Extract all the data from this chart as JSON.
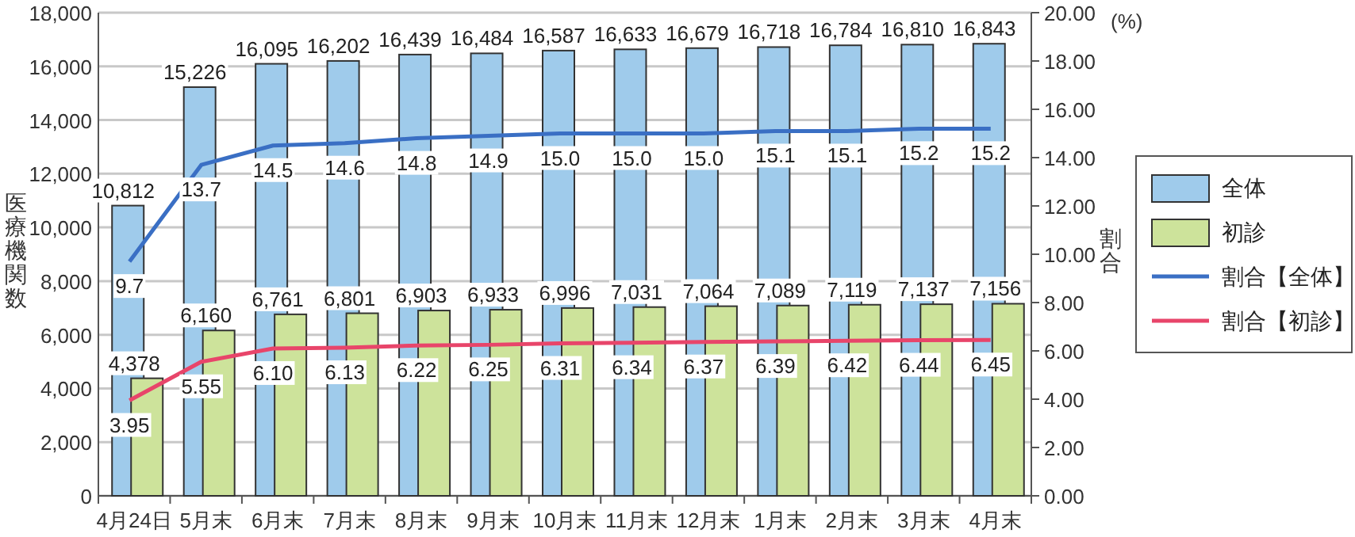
{
  "chart_data": {
    "type": "bar",
    "ylabel": "医療機関数",
    "y2label": "割合",
    "annotations": [
      "(%)"
    ],
    "categories": [
      "4月24日",
      "5月末",
      "6月末",
      "7月末",
      "8月末",
      "9月末",
      "10月末",
      "11月末",
      "12月末",
      "1月末",
      "2月末",
      "3月末",
      "4月末"
    ],
    "series": [
      {
        "name": "全体",
        "color": "#9fcbeb",
        "values": [
          10812,
          15226,
          16095,
          16202,
          16439,
          16484,
          16587,
          16633,
          16679,
          16718,
          16784,
          16810,
          16843
        ],
        "value_labels": [
          "10,812",
          "15,226",
          "16,095",
          "16,202",
          "16,439",
          "16,484",
          "16,587",
          "16,633",
          "16,679",
          "16,718",
          "16,784",
          "16,810",
          "16,843"
        ]
      },
      {
        "name": "初診",
        "color": "#cde39b",
        "values": [
          4378,
          6160,
          6761,
          6801,
          6903,
          6933,
          6996,
          7031,
          7064,
          7089,
          7119,
          7137,
          7156
        ],
        "value_labels": [
          "4,378",
          "6,160",
          "6,761",
          "6,801",
          "6,903",
          "6,933",
          "6,996",
          "7,031",
          "7,064",
          "7,089",
          "7,119",
          "7,137",
          "7,156"
        ]
      },
      {
        "name": "割合【全体】",
        "type": "line",
        "axis": "y2",
        "color": "#3a6fc4",
        "values": [
          9.7,
          13.7,
          14.5,
          14.6,
          14.8,
          14.9,
          15.0,
          15.0,
          15.0,
          15.1,
          15.1,
          15.2,
          15.2
        ],
        "value_labels": [
          "9.7",
          "13.7",
          "14.5",
          "14.6",
          "14.8",
          "14.9",
          "15.0",
          "15.0",
          "15.0",
          "15.1",
          "15.1",
          "15.2",
          "15.2"
        ]
      },
      {
        "name": "割合【初診】",
        "type": "line",
        "axis": "y2",
        "color": "#e8456a",
        "values": [
          3.95,
          5.55,
          6.1,
          6.13,
          6.22,
          6.25,
          6.31,
          6.34,
          6.37,
          6.39,
          6.42,
          6.44,
          6.45
        ],
        "value_labels": [
          "3.95",
          "5.55",
          "6.10",
          "6.13",
          "6.22",
          "6.25",
          "6.31",
          "6.34",
          "6.37",
          "6.39",
          "6.42",
          "6.44",
          "6.45"
        ]
      }
    ],
    "ylim": [
      0,
      18000
    ],
    "yticks": [
      0,
      {
        "value": 2000,
        "label": "2,000"
      },
      {
        "value": 4000,
        "label": "4,000"
      },
      {
        "value": 6000,
        "label": "6,000"
      },
      {
        "value": 8000,
        "label": "8,000"
      },
      {
        "value": 10000,
        "label": "10,000"
      },
      {
        "value": 12000,
        "label": "12,000"
      },
      {
        "value": 14000,
        "label": "14,000"
      },
      {
        "value": 16000,
        "label": "16,000"
      },
      {
        "value": 18000,
        "label": "18,000"
      }
    ],
    "y2lim": [
      0,
      20
    ],
    "y2ticks": [
      {
        "value": 0,
        "label": "0.00"
      },
      {
        "value": 2,
        "label": "2.00"
      },
      {
        "value": 4,
        "label": "4.00"
      },
      {
        "value": 6,
        "label": "6.00"
      },
      {
        "value": 8,
        "label": "8.00"
      },
      {
        "value": 10,
        "label": "10.00"
      },
      {
        "value": 12,
        "label": "12.00"
      },
      {
        "value": 14,
        "label": "14.00"
      },
      {
        "value": 16,
        "label": "16.00"
      },
      {
        "value": 18,
        "label": "18.00"
      },
      {
        "value": 20,
        "label": "20.00"
      }
    ],
    "grid": "y",
    "legend": "right"
  }
}
